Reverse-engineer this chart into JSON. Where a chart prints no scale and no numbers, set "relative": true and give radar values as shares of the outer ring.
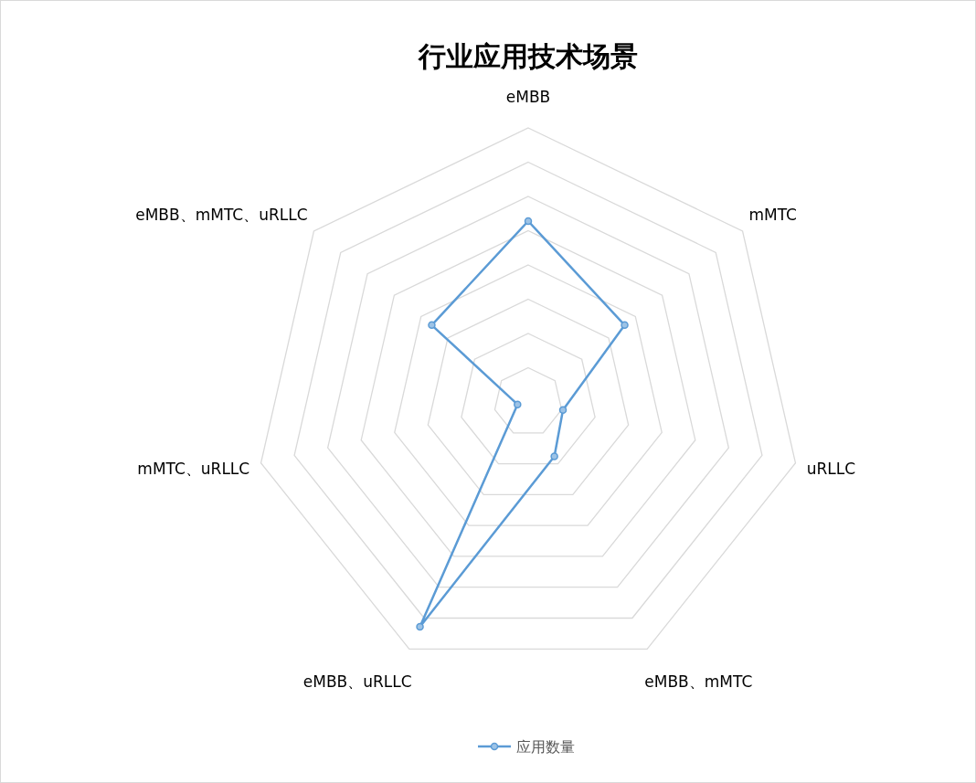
{
  "chart_data": {
    "type": "radar",
    "title": "行业应用技术场景",
    "categories": [
      "eMBB",
      "mMTC",
      "uRLLC",
      "eMBB、mMTC",
      "eMBB、uRLLC",
      "mMTC、uRLLC",
      "eMBB、mMTC、uRLLC"
    ],
    "series": [
      {
        "name": "应用数量",
        "color": "#5b9bd5",
        "values": [
          0.66,
          0.45,
          0.13,
          0.22,
          0.91,
          0.04,
          0.45
        ]
      }
    ],
    "relative": true,
    "grid": true,
    "legend": "bottom",
    "marker": "circle"
  }
}
